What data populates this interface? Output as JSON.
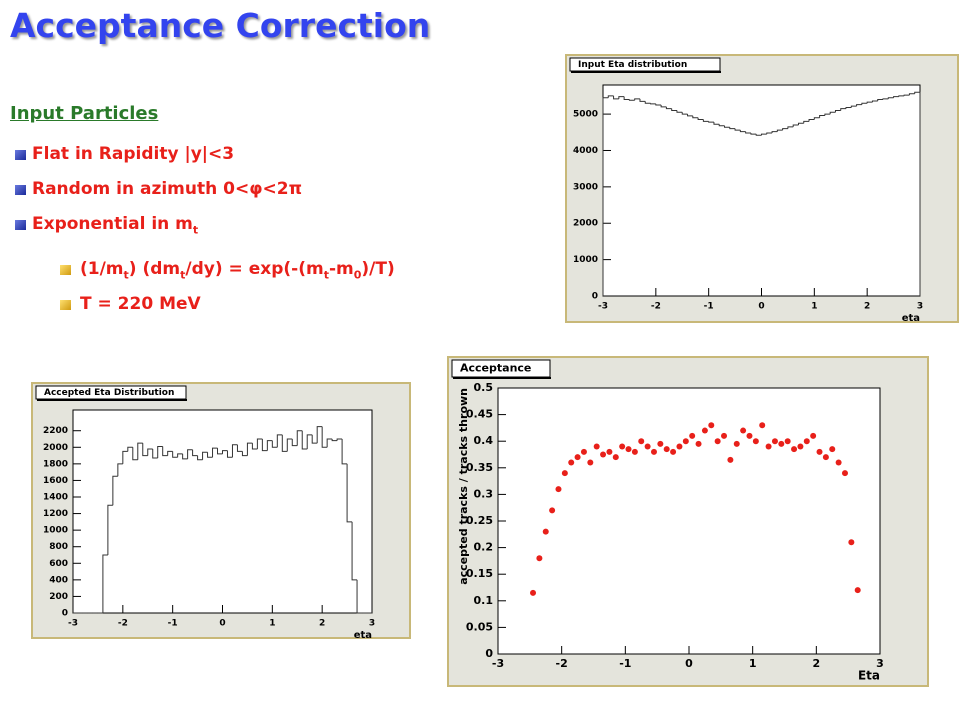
{
  "slide": {
    "title": "Acceptance Correction",
    "heading": "Input Particles",
    "bullets": [
      {
        "parts": [
          "Flat in Rapidity |y|<3"
        ]
      },
      {
        "parts": [
          "Random in azimuth 0<φ<2π"
        ]
      },
      {
        "parts": [
          "Exponential in m",
          "t"
        ]
      }
    ],
    "sub_bullets": [
      {
        "parts": [
          "(1/m",
          "t",
          ") (dm",
          "t",
          "/dy) = exp(-(m",
          "t",
          "-m",
          "0",
          ")/T)"
        ]
      },
      {
        "parts": [
          "T = 220 MeV"
        ]
      }
    ]
  },
  "chart_data": [
    {
      "type": "histogram",
      "title": "Input Eta distribution",
      "x_label": "eta",
      "bins": [
        -3,
        -2.9,
        -2.8,
        -2.7,
        -2.6,
        -2.5,
        -2.4,
        -2.3,
        -2.2,
        -2.1,
        -2,
        -1.9,
        -1.8,
        -1.7,
        -1.6,
        -1.5,
        -1.4,
        -1.3,
        -1.2,
        -1.1,
        -1,
        -0.9,
        -0.8,
        -0.7,
        -0.6,
        -0.5,
        -0.4,
        -0.3,
        -0.2,
        -0.1,
        0,
        0.1,
        0.2,
        0.3,
        0.4,
        0.5,
        0.6,
        0.7,
        0.8,
        0.9,
        1,
        1.1,
        1.2,
        1.3,
        1.4,
        1.5,
        1.6,
        1.7,
        1.8,
        1.9,
        2,
        2.1,
        2.2,
        2.3,
        2.4,
        2.5,
        2.6,
        2.7,
        2.8,
        2.9,
        3
      ],
      "values": [
        5450,
        5500,
        5420,
        5480,
        5400,
        5380,
        5420,
        5350,
        5300,
        5280,
        5250,
        5200,
        5150,
        5100,
        5050,
        5000,
        4950,
        4900,
        4850,
        4800,
        4780,
        4720,
        4680,
        4640,
        4600,
        4560,
        4520,
        4480,
        4450,
        4420,
        4450,
        4480,
        4520,
        4560,
        4600,
        4650,
        4700,
        4750,
        4800,
        4850,
        4900,
        4960,
        5000,
        5050,
        5100,
        5150,
        5180,
        5220,
        5260,
        5300,
        5330,
        5360,
        5400,
        5420,
        5450,
        5480,
        5500,
        5520,
        5560,
        5600
      ],
      "color": "#333333",
      "xlim": [
        -3,
        3
      ],
      "xticks": [
        -3,
        -2,
        -1,
        0,
        1,
        2,
        3
      ],
      "ylim": [
        0,
        5800
      ],
      "yticks": [
        0,
        1000,
        2000,
        3000,
        4000,
        5000
      ]
    },
    {
      "type": "histogram",
      "title": "Accepted Eta Distribution",
      "x_label": "eta",
      "bins": [
        -3,
        -2.9,
        -2.8,
        -2.7,
        -2.6,
        -2.5,
        -2.4,
        -2.3,
        -2.2,
        -2.1,
        -2,
        -1.9,
        -1.8,
        -1.7,
        -1.6,
        -1.5,
        -1.4,
        -1.3,
        -1.2,
        -1.1,
        -1,
        -0.9,
        -0.8,
        -0.7,
        -0.6,
        -0.5,
        -0.4,
        -0.3,
        -0.2,
        -0.1,
        0,
        0.1,
        0.2,
        0.3,
        0.4,
        0.5,
        0.6,
        0.7,
        0.8,
        0.9,
        1,
        1.1,
        1.2,
        1.3,
        1.4,
        1.5,
        1.6,
        1.7,
        1.8,
        1.9,
        2,
        2.1,
        2.2,
        2.3,
        2.4,
        2.5,
        2.6,
        2.7,
        2.8,
        2.9,
        3
      ],
      "values": [
        0,
        0,
        0,
        0,
        0,
        0,
        700,
        1300,
        1650,
        1800,
        1950,
        2000,
        1850,
        2050,
        1900,
        1980,
        1870,
        2010,
        1900,
        1950,
        1880,
        1920,
        1860,
        1970,
        1900,
        1850,
        1940,
        1880,
        1990,
        1920,
        1960,
        1880,
        2030,
        1950,
        1900,
        2050,
        1980,
        2100,
        1960,
        2080,
        2000,
        2150,
        1950,
        2100,
        2020,
        2200,
        1980,
        2150,
        2050,
        2250,
        2000,
        2100,
        2080,
        2100,
        1800,
        1100,
        400,
        0,
        0,
        0
      ],
      "color": "#333333",
      "xlim": [
        -3,
        3
      ],
      "xticks": [
        -3,
        -2,
        -1,
        0,
        1,
        2,
        3
      ],
      "ylim": [
        0,
        2450
      ],
      "yticks": [
        0,
        200,
        400,
        600,
        800,
        1000,
        1200,
        1400,
        1600,
        1800,
        2000,
        2200
      ]
    },
    {
      "type": "scatter",
      "title": "Acceptance",
      "x_label": "Eta",
      "y_label": "accepted tracks / tracks thrown",
      "x": [
        -2.45,
        -2.35,
        -2.25,
        -2.15,
        -2.05,
        -1.95,
        -1.85,
        -1.75,
        -1.65,
        -1.55,
        -1.45,
        -1.35,
        -1.25,
        -1.15,
        -1.05,
        -0.95,
        -0.85,
        -0.75,
        -0.65,
        -0.55,
        -0.45,
        -0.35,
        -0.25,
        -0.15,
        -0.05,
        0.05,
        0.15,
        0.25,
        0.35,
        0.45,
        0.55,
        0.65,
        0.75,
        0.85,
        0.95,
        1.05,
        1.15,
        1.25,
        1.35,
        1.45,
        1.55,
        1.65,
        1.75,
        1.85,
        1.95,
        2.05,
        2.15,
        2.25,
        2.35,
        2.45,
        2.55,
        2.65
      ],
      "values": [
        0.115,
        0.18,
        0.23,
        0.27,
        0.31,
        0.34,
        0.36,
        0.37,
        0.38,
        0.36,
        0.39,
        0.375,
        0.38,
        0.37,
        0.39,
        0.385,
        0.38,
        0.4,
        0.39,
        0.38,
        0.395,
        0.385,
        0.38,
        0.39,
        0.4,
        0.41,
        0.395,
        0.42,
        0.43,
        0.4,
        0.41,
        0.365,
        0.395,
        0.42,
        0.41,
        0.4,
        0.43,
        0.39,
        0.4,
        0.395,
        0.4,
        0.385,
        0.39,
        0.4,
        0.41,
        0.38,
        0.37,
        0.385,
        0.36,
        0.34,
        0.21,
        0.12
      ],
      "color": "#e8201a",
      "xlim": [
        -3,
        3
      ],
      "xticks": [
        -3,
        -2,
        -1,
        0,
        1,
        2,
        3
      ],
      "ylim": [
        0,
        0.5
      ],
      "yticks": [
        0,
        0.05,
        0.1,
        0.15,
        0.2,
        0.25,
        0.3,
        0.35,
        0.4,
        0.45,
        0.5
      ]
    }
  ]
}
